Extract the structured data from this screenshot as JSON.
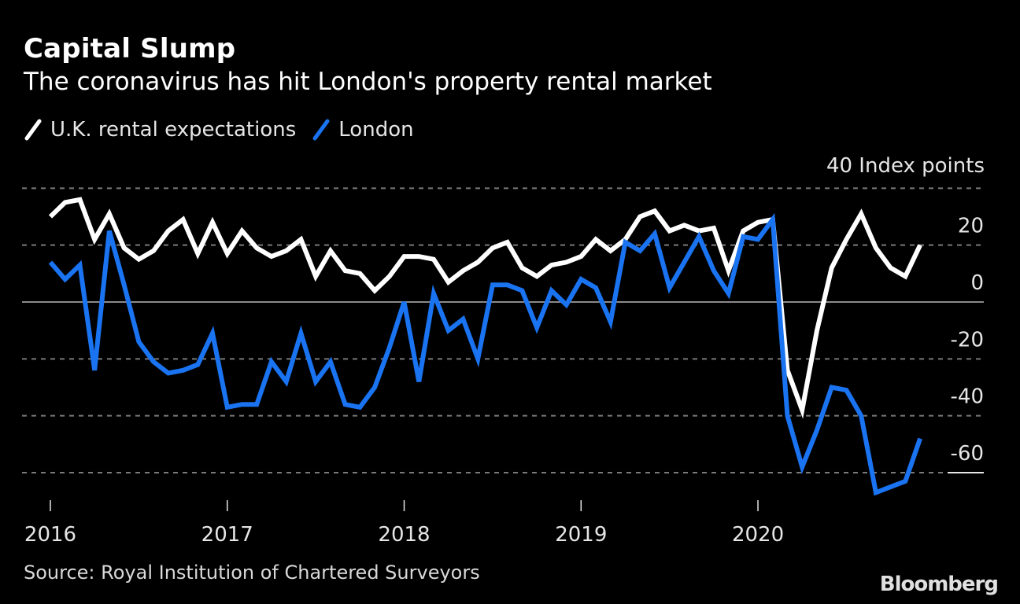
{
  "chart_data": {
    "type": "line",
    "title": "Capital Slump",
    "subtitle": "The coronavirus has hit London's property rental market",
    "unit_label": "40 Index points",
    "xlabel": "",
    "ylabel": "Index points",
    "ylim": [
      -70,
      40
    ],
    "yticks": [
      40,
      20,
      0,
      -20,
      -40,
      -60
    ],
    "ytick_labels": [
      "",
      "20",
      "0",
      "-20",
      "-40",
      "-60"
    ],
    "x_start": "2016-01",
    "x_frequency": "monthly",
    "xticks": [
      "2016",
      "2017",
      "2018",
      "2019",
      "2020"
    ],
    "grid": true,
    "legend_position": "top-left",
    "series": [
      {
        "name": "U.K. rental expectations",
        "color": "#ffffff",
        "values": [
          30,
          35,
          36,
          22,
          31,
          19,
          15,
          18,
          25,
          29,
          17,
          28,
          17,
          25,
          19,
          16,
          18,
          22,
          9,
          18,
          11,
          10,
          4,
          9,
          16,
          16,
          15,
          7,
          11,
          14,
          19,
          21,
          12,
          9,
          13,
          14,
          16,
          22,
          18,
          22,
          30,
          32,
          25,
          27,
          25,
          26,
          11,
          25,
          28,
          29,
          -24,
          -38,
          -10,
          12,
          22,
          31,
          19,
          12,
          9,
          20
        ]
      },
      {
        "name": "London",
        "color": "#1a73f0",
        "values": [
          14,
          8,
          13,
          -24,
          25,
          6,
          -14,
          -21,
          -25,
          -24,
          -22,
          -11,
          -37,
          -36,
          -36,
          -21,
          -28,
          -11,
          -28,
          -21,
          -36,
          -37,
          -30,
          -16,
          0,
          -28,
          3,
          -10,
          -6,
          -20,
          6,
          6,
          4,
          -9,
          4,
          -1,
          8,
          5,
          -7,
          21,
          18,
          24,
          5,
          14,
          23,
          11,
          3,
          23,
          22,
          29,
          -40,
          -58,
          -45,
          -30,
          -31,
          -40,
          -67,
          -65,
          -63,
          -48
        ]
      }
    ]
  },
  "source": "Source: Royal Institution of Chartered Surveyors",
  "brand": "Bloomberg"
}
